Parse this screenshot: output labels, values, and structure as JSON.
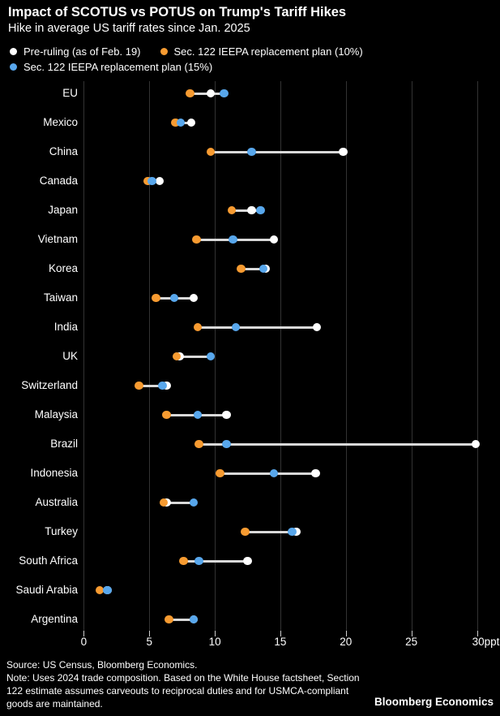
{
  "header": {
    "title": "Impact of SCOTUS vs POTUS on Trump's Tariff Hikes",
    "subtitle": "Hike in average US tariff rates since Jan. 2025"
  },
  "legend": {
    "items": [
      {
        "label": "Pre-ruling (as of Feb. 19)"
      },
      {
        "label": "Sec. 122 IEEPA replacement plan (10%)"
      },
      {
        "label": "Sec. 122 IEEPA replacement plan (15%)"
      }
    ]
  },
  "colors": {
    "background": "#000000",
    "pre_ruling": "#ffffff",
    "sec122_10": "#f79b31",
    "sec122_15": "#58a7ec",
    "connector": "#d9d9d9",
    "gridline": "#333333",
    "tick": "#cfcfcf"
  },
  "chart_data": {
    "type": "scatter",
    "subtype": "dot-plot-with-range-connectors",
    "title": "Impact of SCOTUS vs POTUS on Trump's Tariff Hikes",
    "subtitle": "Hike in average US tariff rates since Jan. 2025",
    "unit": "ppt",
    "xlim": [
      0,
      30
    ],
    "x_ticks": [
      0,
      5,
      10,
      15,
      20,
      25,
      30
    ],
    "x_tick_labels": [
      "0",
      "5",
      "10",
      "15",
      "20",
      "25",
      "30ppt"
    ],
    "grid": "vertical-only",
    "legend_position": "top-left",
    "categories": [
      "EU",
      "Mexico",
      "China",
      "Canada",
      "Japan",
      "Vietnam",
      "Korea",
      "Taiwan",
      "India",
      "UK",
      "Switzerland",
      "Malaysia",
      "Brazil",
      "Indonesia",
      "Australia",
      "Turkey",
      "South Africa",
      "Saudi Arabia",
      "Argentina"
    ],
    "series": [
      {
        "name": "Pre-ruling (as of Feb. 19)",
        "color": "#ffffff",
        "values": [
          9.7,
          8.2,
          19.8,
          5.8,
          12.8,
          14.5,
          13.9,
          8.4,
          17.8,
          7.3,
          6.3,
          10.9,
          29.9,
          17.7,
          6.3,
          16.2,
          12.5,
          1.8,
          8.4
        ]
      },
      {
        "name": "Sec. 122 IEEPA replacement plan (10%)",
        "color": "#f79b31",
        "values": [
          8.1,
          7.0,
          9.7,
          4.9,
          11.3,
          8.6,
          12.0,
          5.5,
          8.7,
          7.1,
          4.2,
          6.3,
          8.8,
          10.4,
          6.1,
          12.3,
          7.6,
          1.2,
          6.5
        ]
      },
      {
        "name": "Sec. 122 IEEPA replacement plan (15%)",
        "color": "#58a7ec",
        "values": [
          10.7,
          7.4,
          12.8,
          5.2,
          13.5,
          11.4,
          13.7,
          6.9,
          11.6,
          9.7,
          6.0,
          8.7,
          10.9,
          14.5,
          8.4,
          15.9,
          8.8,
          1.8,
          8.4
        ]
      }
    ]
  },
  "footer": {
    "source": "Source: US Census, Bloomberg Economics.",
    "note_line1": "Note: Uses 2024 trade composition. Based on the White House factsheet, Section",
    "note_line2": "122 estimate assumes carveouts to reciprocal duties and for USMCA-compliant",
    "note_line3": "goods are maintained.",
    "brand": "Bloomberg Economics"
  }
}
